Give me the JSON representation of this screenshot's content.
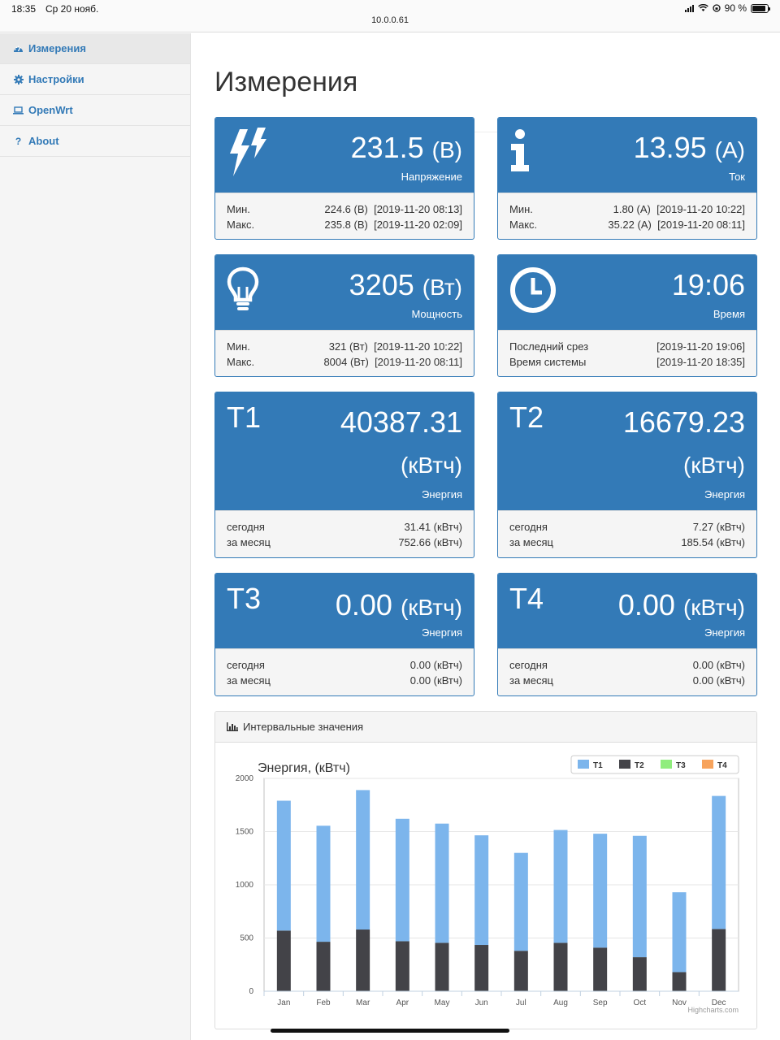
{
  "status_bar": {
    "time": "18:35",
    "date": "Ср 20 нояб.",
    "url": "10.0.0.61",
    "battery": "90 %",
    "battery_level": 0.9
  },
  "sidebar": {
    "items": [
      {
        "label": "Измерения",
        "icon": "dashboard-icon",
        "active": true
      },
      {
        "label": "Настройки",
        "icon": "gear-icon",
        "active": false
      },
      {
        "label": "OpenWrt",
        "icon": "laptop-icon",
        "active": false
      },
      {
        "label": "About",
        "icon": "question-icon",
        "active": false
      }
    ]
  },
  "page": {
    "title": "Измерения"
  },
  "cards": {
    "voltage": {
      "value": "231.5",
      "unit": "(В)",
      "caption": "Напряжение",
      "icon": "lightning-icon",
      "min_label": "Мин.",
      "min_value": "224.6 (В)",
      "min_time": "[2019-11-20 08:13]",
      "max_label": "Макс.",
      "max_value": "235.8 (В)",
      "max_time": "[2019-11-20 02:09]"
    },
    "current": {
      "value": "13.95",
      "unit": "(А)",
      "caption": "Ток",
      "icon": "info-icon",
      "min_label": "Мин.",
      "min_value": "1.80 (А)",
      "min_time": "[2019-11-20 10:22]",
      "max_label": "Макс.",
      "max_value": "35.22 (А)",
      "max_time": "[2019-11-20 08:11]"
    },
    "power": {
      "value": "3205",
      "unit": "(Вт)",
      "caption": "Мощность",
      "icon": "lightbulb-icon",
      "min_label": "Мин.",
      "min_value": "321 (Вт)",
      "min_time": "[2019-11-20 10:22]",
      "max_label": "Макс.",
      "max_value": "8004 (Вт)",
      "max_time": "[2019-11-20 08:11]"
    },
    "time": {
      "value": "19:06",
      "caption": "Время",
      "icon": "clock-icon",
      "row1_label": "Последний срез",
      "row1_value": "[2019-11-20 19:06]",
      "row2_label": "Время системы",
      "row2_value": "[2019-11-20 18:35]"
    },
    "t1": {
      "tag": "T1",
      "value": "40387.31",
      "unit": "(кВтч)",
      "caption": "Энергия",
      "today_label": "сегодня",
      "today_value": "31.41 (кВтч)",
      "month_label": "за месяц",
      "month_value": "752.66 (кВтч)"
    },
    "t2": {
      "tag": "T2",
      "value": "16679.23",
      "unit": "(кВтч)",
      "caption": "Энергия",
      "today_label": "сегодня",
      "today_value": "7.27 (кВтч)",
      "month_label": "за месяц",
      "month_value": "185.54 (кВтч)"
    },
    "t3": {
      "tag": "T3",
      "value": "0.00",
      "unit": "(кВтч)",
      "caption": "Энергия",
      "today_label": "сегодня",
      "today_value": "0.00 (кВтч)",
      "month_label": "за месяц",
      "month_value": "0.00 (кВтч)"
    },
    "t4": {
      "tag": "T4",
      "value": "0.00",
      "unit": "(кВтч)",
      "caption": "Энергия",
      "today_label": "сегодня",
      "today_value": "0.00 (кВтч)",
      "month_label": "за месяц",
      "month_value": "0.00 (кВтч)"
    }
  },
  "chart_panel": {
    "heading": "Интервальные значения",
    "credit": "Highcharts.com"
  },
  "chart_data": {
    "type": "bar",
    "stacked": true,
    "title": "Энергия, (кВтч)",
    "categories": [
      "Jan",
      "Feb",
      "Mar",
      "Apr",
      "May",
      "Jun",
      "Jul",
      "Aug",
      "Sep",
      "Oct",
      "Nov",
      "Dec"
    ],
    "series": [
      {
        "name": "T1",
        "color": "#7cb5ec",
        "values": [
          1220,
          1090,
          1310,
          1150,
          1120,
          1030,
          920,
          1060,
          1070,
          1140,
          750,
          1250
        ]
      },
      {
        "name": "T2",
        "color": "#434348",
        "values": [
          570,
          465,
          580,
          470,
          455,
          435,
          380,
          455,
          410,
          320,
          180,
          585
        ]
      },
      {
        "name": "T3",
        "color": "#90ed7d",
        "values": [
          0,
          0,
          0,
          0,
          0,
          0,
          0,
          0,
          0,
          0,
          0,
          0
        ]
      },
      {
        "name": "T4",
        "color": "#f7a35c",
        "values": [
          0,
          0,
          0,
          0,
          0,
          0,
          0,
          0,
          0,
          0,
          0,
          0
        ]
      }
    ],
    "y_ticks": [
      0,
      500,
      1000,
      1500,
      2000
    ],
    "ylim": [
      0,
      2000
    ],
    "legend": "top-right",
    "grid": true
  }
}
